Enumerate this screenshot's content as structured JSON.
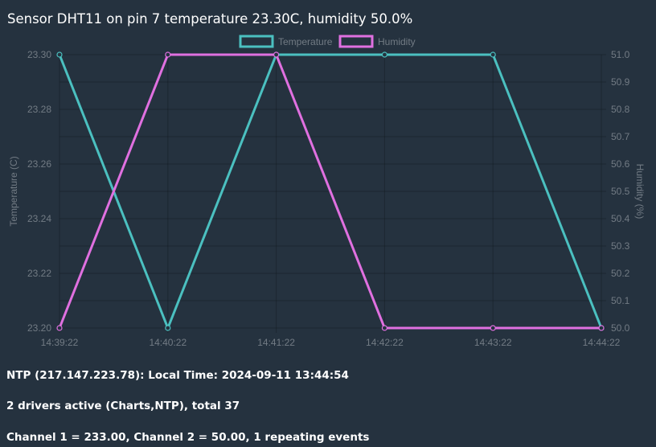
{
  "title": "Sensor DHT11 on pin 7 temperature 23.30C, humidity 50.0%",
  "chart_data": {
    "type": "line",
    "categories": [
      "14:39:22",
      "14:40:22",
      "14:41:22",
      "14:42:22",
      "14:43:22",
      "14:44:22"
    ],
    "series": [
      {
        "name": "Temperature",
        "values": [
          23.3,
          23.2,
          23.3,
          23.3,
          23.3,
          23.2
        ],
        "axis": "left",
        "color": "#4bc0c0"
      },
      {
        "name": "Humidity",
        "values": [
          50.0,
          51.0,
          51.0,
          50.0,
          50.0,
          50.0
        ],
        "axis": "right",
        "color": "#e070e0"
      }
    ],
    "y_left": {
      "label": "Temperature (C)",
      "ylim": [
        23.2,
        23.3
      ],
      "ticks": [
        "23.30",
        "23.28",
        "23.26",
        "23.24",
        "23.22",
        "23.20"
      ]
    },
    "y_right": {
      "label": "Humidity (%)",
      "ylim": [
        50.0,
        51.0
      ],
      "ticks": [
        "51.0",
        "50.9",
        "50.8",
        "50.7",
        "50.6",
        "50.5",
        "50.4",
        "50.3",
        "50.2",
        "50.1",
        "50.0"
      ]
    },
    "legend_position": "top",
    "grid": true
  },
  "status": {
    "ntp": "NTP (217.147.223.78): Local Time: 2024-09-11 13:44:54",
    "drivers": "2 drivers active (Charts,NTP), total 37",
    "channels": "Channel 1 = 233.00, Channel 2 = 50.00, 1 repeating events"
  }
}
